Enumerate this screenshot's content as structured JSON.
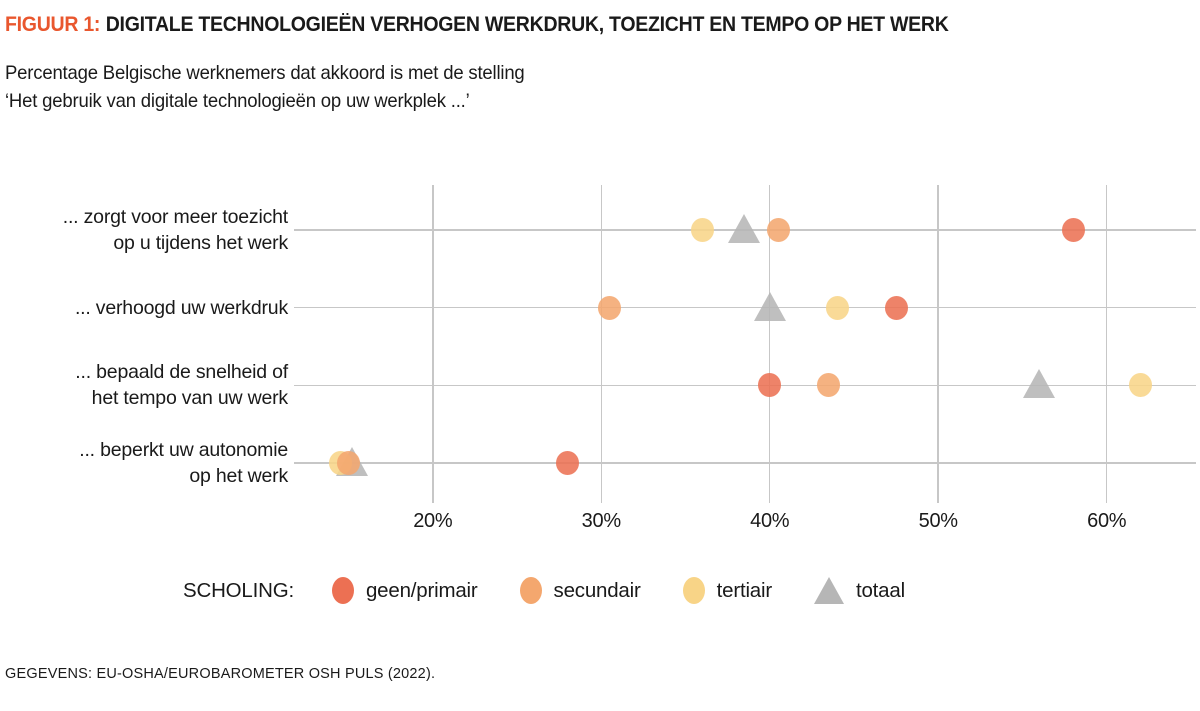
{
  "figure": {
    "label": "FIGUUR 1:",
    "title": "DIGITALE TECHNOLOGIEËN VERHOGEN WERKDRUK, TOEZICHT EN TEMPO OP HET WERK",
    "subtitle_line1": "Percentage Belgische werknemers dat akkoord is met de stelling",
    "subtitle_line2": "‘Het gebruik van digitale technologieën op uw werkplek ...’",
    "source": "GEGEVENS: EU-OSHA/EUROBAROMETER OSH PULS (2022)."
  },
  "legend": {
    "title": "SCHOLING:",
    "items": [
      {
        "label": "geen/primair",
        "marker": "circle",
        "color": "#ec7053"
      },
      {
        "label": "secundair",
        "marker": "circle",
        "color": "#f4a76e"
      },
      {
        "label": "tertiair",
        "marker": "circle",
        "color": "#f8d487"
      },
      {
        "label": "totaal",
        "marker": "triangle",
        "color": "#b6b6b6"
      }
    ]
  },
  "chart_data": {
    "type": "scatter",
    "subtype": "horizontal-dot-plot",
    "title": "Percentage Belgische werknemers dat akkoord is met de stelling ‘Het gebruik van digitale technologieën op uw werkplek ...’",
    "categories": [
      [
        "... zorgt voor meer toezicht",
        "op u tijdens het werk"
      ],
      [
        "... verhoogd uw werkdruk"
      ],
      [
        "... bepaald de snelheid of",
        "het tempo van uw werk"
      ],
      [
        "... beperkt uw autonomie",
        "op het werk"
      ]
    ],
    "series": [
      {
        "name": "geen/primair",
        "marker": "circle",
        "color": "#ec7053",
        "values": [
          58,
          47.5,
          40,
          28
        ]
      },
      {
        "name": "secundair",
        "marker": "circle",
        "color": "#f4a76e",
        "values": [
          40.5,
          30.5,
          43.5,
          15
        ]
      },
      {
        "name": "tertiair",
        "marker": "circle",
        "color": "#f8d487",
        "values": [
          36,
          44,
          62,
          14.5
        ]
      },
      {
        "name": "totaal",
        "marker": "triangle",
        "color": "#b6b6b6",
        "values": [
          38.5,
          40,
          56,
          15.2
        ]
      }
    ],
    "x_ticks": [
      "20%",
      "30%",
      "40%",
      "50%",
      "60%"
    ],
    "x_tick_values": [
      20,
      30,
      40,
      50,
      60
    ],
    "xlim": [
      12,
      65.3
    ],
    "unit": "%",
    "grid": true,
    "legend_position": "bottom"
  },
  "colors": {
    "accent_orange": "#e9572e",
    "text": "#1a1a1a",
    "grid": "#c7c7c7"
  }
}
